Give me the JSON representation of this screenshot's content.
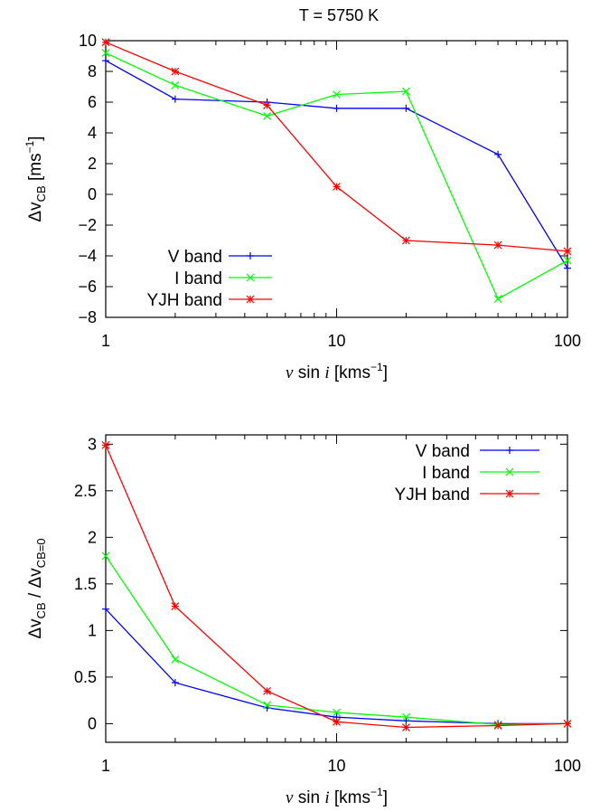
{
  "figure": {
    "title": "T = 5750 K"
  },
  "colors": {
    "V band": "#0000ff",
    "I band": "#00ff00",
    "YJH band": "#ff0000"
  },
  "chart_data": [
    {
      "type": "line",
      "title": "T = 5750 K",
      "xscale": "log",
      "xlim": [
        1,
        100
      ],
      "ylim": [
        -8,
        10
      ],
      "xticks": [
        1,
        10,
        100
      ],
      "yticks": [
        -8,
        -6,
        -4,
        -2,
        0,
        2,
        4,
        6,
        8,
        10
      ],
      "xlabel": {
        "italic": "v",
        "text": " sin ",
        "italic2": "i",
        "unit": " [kms",
        "sup": "−1",
        "close": "]"
      },
      "ylabel": {
        "main": "Δv",
        "sub": "CB",
        "unit": " [ms",
        "sup": "−1",
        "close": "]"
      },
      "legend_position": "bottom-left",
      "x": [
        1,
        2,
        5,
        10,
        20,
        50,
        100
      ],
      "series": [
        {
          "name": "V band",
          "marker": "plus",
          "values": [
            8.7,
            6.2,
            6.0,
            5.6,
            5.6,
            2.6,
            -4.8
          ]
        },
        {
          "name": "I band",
          "marker": "cross",
          "values": [
            9.2,
            7.1,
            5.1,
            6.5,
            6.7,
            -6.8,
            -4.3
          ]
        },
        {
          "name": "YJH band",
          "marker": "star",
          "values": [
            9.9,
            8.0,
            5.8,
            0.5,
            -3.0,
            -3.3,
            -3.7
          ]
        }
      ]
    },
    {
      "type": "line",
      "title": "",
      "xscale": "log",
      "xlim": [
        1,
        100
      ],
      "ylim": [
        -0.2,
        3.1
      ],
      "xticks": [
        1,
        10,
        100
      ],
      "yticks": [
        0,
        0.5,
        1,
        1.5,
        2,
        2.5,
        3
      ],
      "xlabel": {
        "italic": "v",
        "text": " sin ",
        "italic2": "i",
        "unit": " [kms",
        "sup": "−1",
        "close": "]"
      },
      "ylabel": {
        "main": "Δv",
        "sub": "CB",
        "unit": " / Δv",
        "sub2": "CB=0"
      },
      "legend_position": "top-right",
      "x": [
        1,
        2,
        5,
        10,
        20,
        50,
        100
      ],
      "series": [
        {
          "name": "V band",
          "marker": "plus",
          "values": [
            1.23,
            0.44,
            0.17,
            0.07,
            0.03,
            0.0,
            0.0
          ]
        },
        {
          "name": "I band",
          "marker": "cross",
          "values": [
            1.8,
            0.69,
            0.2,
            0.12,
            0.07,
            -0.01,
            0.0
          ]
        },
        {
          "name": "YJH band",
          "marker": "star",
          "values": [
            2.99,
            1.26,
            0.35,
            0.02,
            -0.04,
            -0.02,
            0.0
          ]
        }
      ]
    }
  ]
}
